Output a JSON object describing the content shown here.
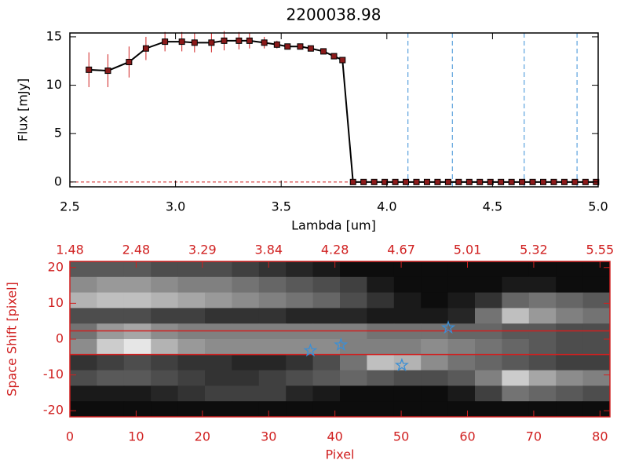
{
  "chart_data": [
    {
      "type": "line",
      "title": "2200038.98",
      "xlabel": "Lambda [um]",
      "ylabel": "Flux [mJy]",
      "x": [
        2.59,
        2.68,
        2.78,
        2.86,
        2.95,
        3.03,
        3.09,
        3.17,
        3.23,
        3.3,
        3.35,
        3.42,
        3.48,
        3.53,
        3.59,
        3.64,
        3.7,
        3.75,
        3.79,
        3.84,
        3.89,
        3.94,
        3.99,
        4.04,
        4.09,
        4.14,
        4.19,
        4.24,
        4.29,
        4.34,
        4.39,
        4.44,
        4.49,
        4.54,
        4.59,
        4.64,
        4.69,
        4.74,
        4.79,
        4.84,
        4.89,
        4.94,
        4.99
      ],
      "values": [
        11.6,
        11.5,
        12.4,
        13.8,
        14.5,
        14.5,
        14.4,
        14.4,
        14.6,
        14.6,
        14.6,
        14.4,
        14.2,
        14.0,
        14.0,
        13.8,
        13.5,
        13.0,
        12.6,
        0,
        0,
        0,
        0,
        0,
        0,
        0,
        0,
        0,
        0,
        0,
        0,
        0,
        0,
        0,
        0,
        0,
        0,
        0,
        0,
        0,
        0,
        0,
        0
      ],
      "errors": [
        1.8,
        1.7,
        1.6,
        1.2,
        1.0,
        1.0,
        1.0,
        1.0,
        1.0,
        0.9,
        0.8,
        0.6,
        0.4,
        0.3,
        0.3,
        0.3,
        0.3,
        0.3,
        0.3,
        0,
        0,
        0,
        0,
        0,
        0,
        0,
        0,
        0,
        0,
        0,
        0,
        0,
        0,
        0,
        0,
        0,
        0,
        0,
        0,
        0,
        0,
        0,
        0
      ],
      "color": "#000000",
      "marker_color": "#8b1a1a",
      "error_color": "#d02020",
      "vlines": [
        4.1,
        4.31,
        4.65,
        4.9
      ],
      "vline_color": "#3a8fd6",
      "hlines": [
        0
      ],
      "hline_color": "#d02020",
      "xlim": [
        2.5,
        5.0
      ],
      "ylim": [
        -0.5,
        15.4
      ],
      "xticks": [
        2.5,
        {
          "value": 3,
          "label": "3.0"
        },
        3.5,
        {
          "value": 4,
          "label": "4.0"
        },
        4.5,
        {
          "value": 5,
          "label": "5.0"
        }
      ],
      "yticks": [
        0,
        5,
        10,
        15
      ]
    },
    {
      "type": "heatmap",
      "xlabel": "Pixel",
      "ylabel": "Space Shift [pixel]",
      "axis_color": "#d02020",
      "xlim": [
        0,
        81.5
      ],
      "ylim": [
        -21.7,
        21.7
      ],
      "xticks": [
        0,
        10,
        20,
        30,
        40,
        50,
        60,
        70,
        80
      ],
      "yticks": [
        -20,
        -10,
        0,
        10,
        20
      ],
      "x2ticks": [
        {
          "value": 0,
          "label": "1.48"
        },
        {
          "value": 10,
          "label": "2.48"
        },
        {
          "value": 20,
          "label": "3.29"
        },
        {
          "value": 30,
          "label": "3.84"
        },
        {
          "value": 40,
          "label": "4.28"
        },
        {
          "value": 50,
          "label": "4.67"
        },
        {
          "value": 60,
          "label": "5.01"
        },
        {
          "value": 70,
          "label": "5.32"
        },
        {
          "value": 80,
          "label": "5.55"
        }
      ],
      "z": [
        [
          0.35,
          0.35,
          0.35,
          0.3,
          0.3,
          0.3,
          0.25,
          0.2,
          0.15,
          0.1,
          0.05,
          0.05,
          0.05,
          0.05,
          0.05,
          0.05,
          0.05,
          0.05,
          0.05,
          0.05
        ],
        [
          0.55,
          0.6,
          0.6,
          0.55,
          0.5,
          0.5,
          0.45,
          0.4,
          0.35,
          0.3,
          0.25,
          0.1,
          0.05,
          0.05,
          0.05,
          0.05,
          0.1,
          0.1,
          0.05,
          0.05
        ],
        [
          0.7,
          0.75,
          0.75,
          0.7,
          0.65,
          0.6,
          0.55,
          0.5,
          0.45,
          0.4,
          0.3,
          0.2,
          0.1,
          0.05,
          0.1,
          0.2,
          0.4,
          0.45,
          0.4,
          0.35
        ],
        [
          0.3,
          0.3,
          0.3,
          0.25,
          0.25,
          0.2,
          0.2,
          0.2,
          0.15,
          0.15,
          0.15,
          0.1,
          0.1,
          0.1,
          0.15,
          0.45,
          0.75,
          0.6,
          0.5,
          0.45
        ],
        [
          0.45,
          0.6,
          0.65,
          0.55,
          0.5,
          0.5,
          0.5,
          0.5,
          0.5,
          0.5,
          0.5,
          0.45,
          0.45,
          0.45,
          0.4,
          0.4,
          0.35,
          0.35,
          0.3,
          0.3
        ],
        [
          0.55,
          0.8,
          0.9,
          0.7,
          0.6,
          0.55,
          0.55,
          0.55,
          0.55,
          0.55,
          0.5,
          0.5,
          0.5,
          0.55,
          0.5,
          0.45,
          0.4,
          0.35,
          0.3,
          0.3
        ],
        [
          0.2,
          0.25,
          0.3,
          0.25,
          0.2,
          0.2,
          0.15,
          0.15,
          0.2,
          0.3,
          0.45,
          0.75,
          0.7,
          0.55,
          0.45,
          0.4,
          0.35,
          0.3,
          0.25,
          0.25
        ],
        [
          0.3,
          0.35,
          0.35,
          0.3,
          0.25,
          0.2,
          0.2,
          0.25,
          0.3,
          0.35,
          0.4,
          0.35,
          0.3,
          0.3,
          0.35,
          0.5,
          0.8,
          0.65,
          0.55,
          0.5
        ],
        [
          0.1,
          0.1,
          0.1,
          0.15,
          0.2,
          0.25,
          0.25,
          0.25,
          0.15,
          0.1,
          0.05,
          0.05,
          0.05,
          0.05,
          0.1,
          0.25,
          0.45,
          0.4,
          0.35,
          0.3
        ],
        [
          0.05,
          0.05,
          0.05,
          0.05,
          0.05,
          0.05,
          0.05,
          0.05,
          0.05,
          0.05,
          0.05,
          0.05,
          0.05,
          0.05,
          0.05,
          0.05,
          0.05,
          0.05,
          0.05,
          0.05
        ]
      ],
      "hlines": [
        2.3,
        -4.3
      ],
      "hline_color": "#d02020",
      "markers": {
        "x": [
          36.3,
          40.9,
          50.1,
          57.1
        ],
        "y": [
          -3.2,
          -1.6,
          -7.3,
          3.2
        ],
        "color": "#3a8fd6"
      }
    }
  ]
}
